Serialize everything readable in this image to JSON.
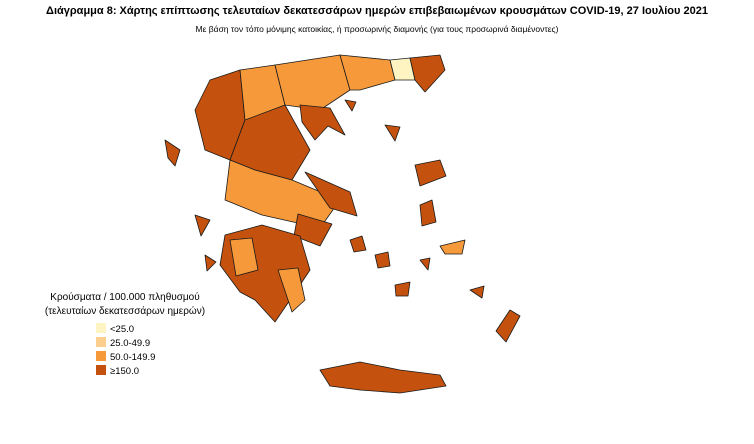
{
  "title": "Διάγραμμα 8: Χάρτης επίπτωσης τελευταίων δεκατεσσάρων ημερών επιβεβαιωμένων κρουσμάτων COVID-19, 27 Ιουλίου 2021",
  "subtitle": "Με βάση τον τόπο μόνιμης κατοικίας, ή προσωρινής διαμονής (για τους προσωρινά διαμένοντες)",
  "legend": {
    "title": [
      "Κρούσματα / 100.000 πληθυσμού",
      "(τελευταίων δεκατεσσάρων ημερών)"
    ],
    "items": [
      {
        "label": "<25.0",
        "color": "#fef4c2"
      },
      {
        "label": "25.0-49.9",
        "color": "#fdcf8e"
      },
      {
        "label": "50.0-149.9",
        "color": "#f5993b"
      },
      {
        "label": "≥150.0",
        "color": "#c4520e"
      }
    ]
  }
}
